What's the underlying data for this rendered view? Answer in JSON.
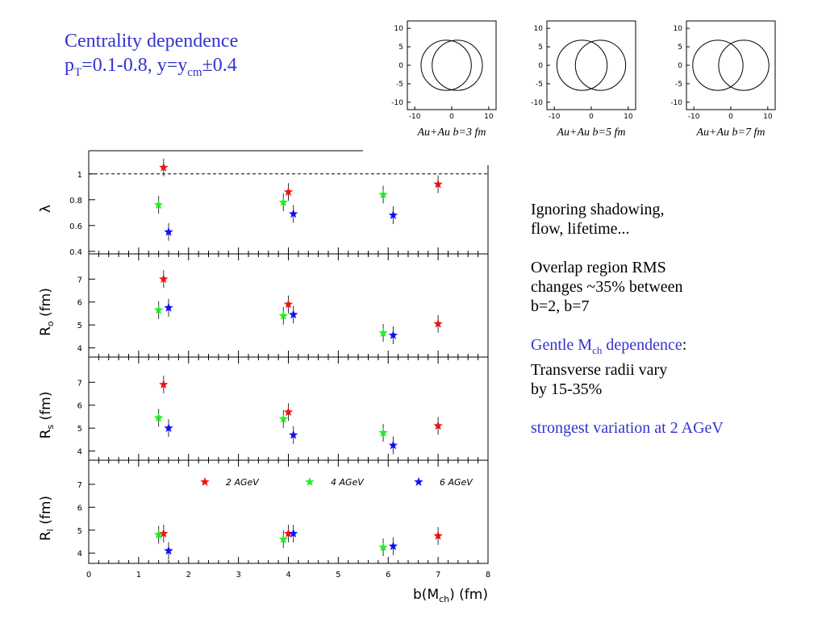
{
  "slide": {
    "title_line1": "Centrality dependence",
    "title_line2": {
      "p": "p",
      "T": "T",
      "eq1": "=0.1-0.8, y=y",
      "cm": "cm",
      "eq2": "±0.4"
    },
    "notes": {
      "block1": [
        "Ignoring shadowing,",
        "flow, lifetime..."
      ],
      "block2": [
        "Overlap region RMS",
        "changes ~35% between",
        "b=2, b=7"
      ],
      "block3": {
        "blue_pre": "Gentle M",
        "blue_sub": "ch",
        "blue_post": " dependence",
        "colon": ":",
        "lines": [
          "Transverse radii vary",
          "by 15-35%"
        ]
      },
      "block4": "strongest variation at 2 AGeV"
    }
  },
  "geometry_panels": [
    {
      "label": "Au+Au b=3 fm",
      "impact_parameter_fm": 3
    },
    {
      "label": "Au+Au b=5 fm",
      "impact_parameter_fm": 5
    },
    {
      "label": "Au+Au b=7 fm",
      "impact_parameter_fm": 7
    }
  ],
  "geometry_axis": {
    "ticks": [
      "10",
      "5",
      "0",
      "-5",
      "-10"
    ],
    "xticks": [
      "-10",
      "0",
      "10"
    ],
    "range": [
      -12,
      12
    ]
  },
  "colors": {
    "2 AGeV": "#ee1111",
    "4 AGeV": "#22ee22",
    "6 AGeV": "#1111ee",
    "title_blue": "#3333cc"
  },
  "chart_data": {
    "type": "scatter",
    "xlabel": "b(M_ch) (fm)",
    "xlabel_parts": {
      "pre": "b(M",
      "sub": "ch",
      "post": ") (fm)"
    },
    "xlim": [
      0,
      8
    ],
    "xticks": [
      0,
      1,
      2,
      3,
      4,
      5,
      6,
      7,
      8
    ],
    "legend": [
      "2 AGeV",
      "4 AGeV",
      "6 AGeV"
    ],
    "legend_placement": "inside bottom panel, top",
    "panels": [
      {
        "ylabel": "λ",
        "ylabel_sub": "",
        "ylim": [
          0.38,
          1.18
        ],
        "yticks": [
          "0.4",
          "0.6",
          "0.8",
          "1"
        ],
        "reference_line": 1,
        "series": [
          {
            "name": "2 AGeV",
            "points": [
              [
                1.5,
                1.05
              ],
              [
                4.0,
                0.86
              ],
              [
                7.0,
                0.92
              ]
            ]
          },
          {
            "name": "4 AGeV",
            "points": [
              [
                1.4,
                0.76
              ],
              [
                3.9,
                0.78
              ],
              [
                5.9,
                0.84
              ]
            ]
          },
          {
            "name": "6 AGeV",
            "points": [
              [
                1.6,
                0.55
              ],
              [
                4.1,
                0.69
              ],
              [
                6.1,
                0.68
              ]
            ]
          }
        ]
      },
      {
        "ylabel": "R",
        "ylabel_sub": "o",
        "ylabel_unit": " (fm)",
        "ylim": [
          3.6,
          8.1
        ],
        "yticks": [
          "4",
          "5",
          "6",
          "7"
        ],
        "series": [
          {
            "name": "2 AGeV",
            "points": [
              [
                1.5,
                7.0
              ],
              [
                4.0,
                5.9
              ],
              [
                7.0,
                5.05
              ]
            ]
          },
          {
            "name": "4 AGeV",
            "points": [
              [
                1.4,
                5.65
              ],
              [
                3.9,
                5.4
              ],
              [
                5.9,
                4.65
              ]
            ]
          },
          {
            "name": "6 AGeV",
            "points": [
              [
                1.6,
                5.75
              ],
              [
                4.1,
                5.45
              ],
              [
                6.1,
                4.55
              ]
            ]
          }
        ]
      },
      {
        "ylabel": "R",
        "ylabel_sub": "s",
        "ylabel_unit": " (fm)",
        "ylim": [
          3.6,
          8.1
        ],
        "yticks": [
          "4",
          "5",
          "6",
          "7"
        ],
        "series": [
          {
            "name": "2 AGeV",
            "points": [
              [
                1.5,
                6.9
              ],
              [
                4.0,
                5.7
              ],
              [
                7.0,
                5.1
              ]
            ]
          },
          {
            "name": "4 AGeV",
            "points": [
              [
                1.4,
                5.45
              ],
              [
                3.9,
                5.4
              ],
              [
                5.9,
                4.8
              ]
            ]
          },
          {
            "name": "6 AGeV",
            "points": [
              [
                1.6,
                5.0
              ],
              [
                4.1,
                4.7
              ],
              [
                6.1,
                4.25
              ]
            ]
          }
        ]
      },
      {
        "ylabel": "R",
        "ylabel_sub": "l",
        "ylabel_unit": " (fm)",
        "ylim": [
          3.55,
          8.05
        ],
        "yticks": [
          "4",
          "5",
          "6",
          "7"
        ],
        "series": [
          {
            "name": "2 AGeV",
            "points": [
              [
                1.5,
                4.85
              ],
              [
                4.0,
                4.85
              ],
              [
                7.0,
                4.75
              ]
            ]
          },
          {
            "name": "4 AGeV",
            "points": [
              [
                1.4,
                4.8
              ],
              [
                3.9,
                4.6
              ],
              [
                5.9,
                4.25
              ]
            ]
          },
          {
            "name": "6 AGeV",
            "points": [
              [
                1.6,
                4.1
              ],
              [
                4.1,
                4.85
              ],
              [
                6.1,
                4.3
              ]
            ]
          }
        ]
      }
    ]
  }
}
